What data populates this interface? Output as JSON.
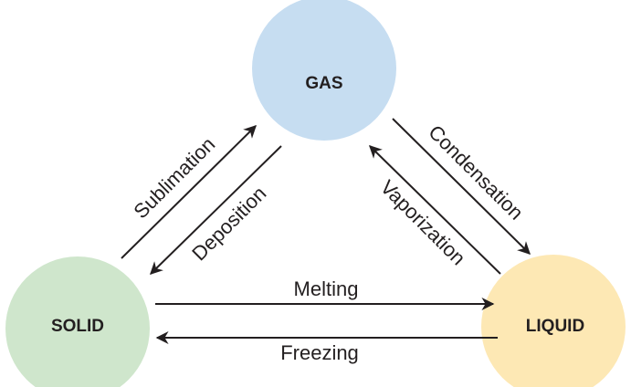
{
  "nodes": [
    {
      "label": "GAS"
    },
    {
      "label": "SOLID"
    },
    {
      "label": "LIQUID"
    }
  ],
  "transitions": [
    {
      "label": "Sublimation"
    },
    {
      "label": "Deposition"
    },
    {
      "label": "Condensation"
    },
    {
      "label": "Vaporization"
    },
    {
      "label": "Melting"
    },
    {
      "label": "Freezing"
    }
  ]
}
